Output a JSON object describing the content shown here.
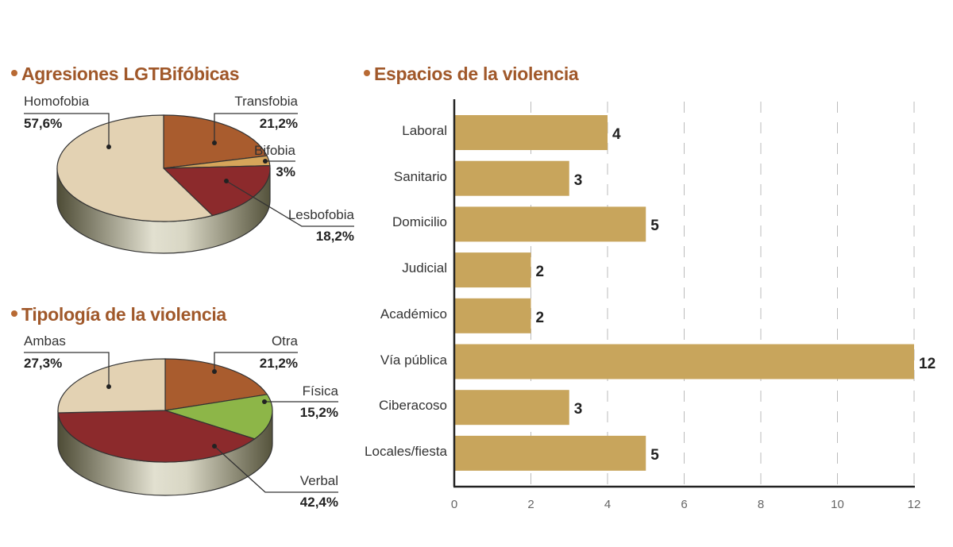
{
  "chart_data": [
    {
      "type": "pie",
      "title": "Agresiones LGTBifóbicas",
      "slices": [
        {
          "label": "Transfobia",
          "value": 21.2,
          "display": "21,2%",
          "color": "#a95c2e"
        },
        {
          "label": "Bifobia",
          "value": 3,
          "display": "3%",
          "color": "#d6a55a"
        },
        {
          "label": "Lesbofobia",
          "value": 18.2,
          "display": "18,2%",
          "color": "#8c2a2c"
        },
        {
          "label": "Homofobia",
          "value": 57.6,
          "display": "57,6%",
          "color": "#e3d2b3"
        }
      ]
    },
    {
      "type": "pie",
      "title": "Tipología de la violencia",
      "slices": [
        {
          "label": "Otra",
          "value": 21.2,
          "display": "21,2%",
          "color": "#a95c2e"
        },
        {
          "label": "Física",
          "value": 15.2,
          "display": "15,2%",
          "color": "#8db648"
        },
        {
          "label": "Verbal",
          "value": 42.4,
          "display": "42,4%",
          "color": "#8c2a2c"
        },
        {
          "label": "Ambas",
          "value": 27.3,
          "display": "27,3%",
          "color": "#e3d2b3"
        }
      ]
    },
    {
      "type": "bar",
      "orientation": "horizontal",
      "title": "Espacios de la violencia",
      "categories": [
        "Laboral",
        "Sanitario",
        "Domicilio",
        "Judicial",
        "Académico",
        "Vía pública",
        "Ciberacoso",
        "Locales/fiesta"
      ],
      "values": [
        4,
        3,
        5,
        2,
        2,
        12,
        3,
        5
      ],
      "xlim": [
        0,
        12
      ],
      "xticks": [
        "0",
        "2",
        "4",
        "6",
        "8",
        "10",
        "12"
      ],
      "grid": "vertical dashed",
      "bar_color": "#c8a55c"
    }
  ]
}
